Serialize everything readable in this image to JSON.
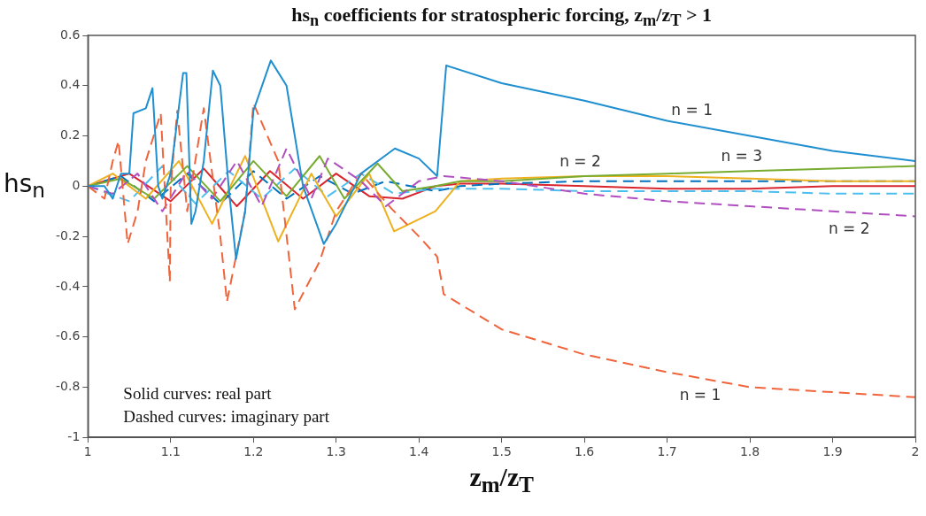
{
  "chart_data": {
    "type": "line",
    "title": "hs$_{n}$ coefficients for stratospheric forcing,  z$_{m}$/z$_{T}$ > 1",
    "xlabel": "z$_{m}$/z$_{T}$",
    "ylabel": "hs$_{n}$",
    "xlim": [
      1,
      2
    ],
    "xticks": [
      1,
      1.1,
      1.2,
      1.3,
      1.4,
      1.5,
      1.6,
      1.7,
      1.8,
      1.9,
      2
    ],
    "ylim": [
      -1,
      0.6
    ],
    "yticks": [
      -1,
      -0.8,
      -0.6,
      -0.4,
      -0.2,
      0,
      0.2,
      0.4,
      0.6
    ],
    "series": [
      {
        "name": "n = 1",
        "color": "#1f8fd0",
        "line_style": "solid",
        "x": [
          1,
          1.02,
          1.03,
          1.04,
          1.05,
          1.055,
          1.07,
          1.078,
          1.085,
          1.09,
          1.1,
          1.115,
          1.119,
          1.125,
          1.13,
          1.14,
          1.151,
          1.16,
          1.17,
          1.179,
          1.19,
          1.2,
          1.221,
          1.24,
          1.26,
          1.285,
          1.3,
          1.33,
          1.371,
          1.4,
          1.422,
          1.433,
          1.5,
          1.6,
          1.7,
          1.8,
          1.9,
          2
        ],
        "values": [
          0,
          0,
          -0.05,
          0.05,
          0.05,
          0.29,
          0.31,
          0.39,
          0,
          -0.05,
          0.05,
          0.45,
          0.45,
          -0.15,
          -0.1,
          0.1,
          0.46,
          0.4,
          0,
          -0.29,
          -0.1,
          0.3,
          0.5,
          0.4,
          0,
          -0.23,
          -0.15,
          0.05,
          0.15,
          0.11,
          0.04,
          0.48,
          0.41,
          0.34,
          0.26,
          0.2,
          0.14,
          0.1
        ]
      },
      {
        "name": "n = 1",
        "color": "#f0643c",
        "line_style": "dashed",
        "x": [
          1,
          1.02,
          1.03,
          1.037,
          1.048,
          1.06,
          1.07,
          1.088,
          1.099,
          1.1,
          1.108,
          1.12,
          1.14,
          1.16,
          1.168,
          1.19,
          1.2,
          1.23,
          1.25,
          1.28,
          1.3,
          1.33,
          1.367,
          1.4,
          1.422,
          1.43,
          1.5,
          1.6,
          1.7,
          1.8,
          1.9,
          2
        ],
        "values": [
          0,
          -0.05,
          0.1,
          0.18,
          -0.23,
          -0.1,
          0.1,
          0.29,
          -0.38,
          0,
          0.3,
          -0.1,
          0.31,
          -0.2,
          -0.46,
          -0.1,
          0.33,
          0.1,
          -0.49,
          -0.3,
          -0.1,
          0.05,
          -0.09,
          -0.2,
          -0.28,
          -0.43,
          -0.57,
          -0.67,
          -0.74,
          -0.8,
          -0.82,
          -0.84
        ]
      },
      {
        "name": "n = 2",
        "color": "#b04fc0",
        "line_style": "dashed",
        "x": [
          1,
          1.03,
          1.06,
          1.09,
          1.12,
          1.15,
          1.18,
          1.21,
          1.24,
          1.27,
          1.29,
          1.33,
          1.36,
          1.4,
          1.43,
          1.5,
          1.6,
          1.7,
          1.8,
          1.9,
          2
        ],
        "values": [
          0,
          -0.03,
          0.05,
          -0.1,
          0.06,
          -0.05,
          0.1,
          -0.08,
          0.15,
          -0.05,
          0.11,
          0.02,
          -0.08,
          0.02,
          0.04,
          0.02,
          -0.03,
          -0.06,
          -0.08,
          -0.1,
          -0.12
        ]
      },
      {
        "name": "n = 3",
        "color": "#77ac30",
        "line_style": "solid",
        "x": [
          1,
          1.04,
          1.08,
          1.12,
          1.16,
          1.2,
          1.24,
          1.28,
          1.31,
          1.35,
          1.38,
          1.42,
          1.45,
          1.5,
          1.6,
          1.7,
          1.8,
          1.9,
          2
        ],
        "values": [
          0,
          0.03,
          -0.05,
          0.08,
          -0.06,
          0.1,
          -0.04,
          0.12,
          -0.05,
          0.09,
          -0.02,
          0,
          0.02,
          0.02,
          0.04,
          0.05,
          0.06,
          0.07,
          0.08
        ]
      },
      {
        "name": "n = 2",
        "color": "#edb120",
        "line_style": "solid",
        "x": [
          1,
          1.03,
          1.07,
          1.11,
          1.15,
          1.19,
          1.23,
          1.27,
          1.3,
          1.34,
          1.37,
          1.42,
          1.45,
          1.5,
          1.6,
          1.7,
          1.8,
          1.9,
          2
        ],
        "values": [
          0,
          0.05,
          -0.05,
          0.1,
          -0.15,
          0.12,
          -0.22,
          0.05,
          -0.12,
          0.05,
          -0.18,
          -0.1,
          0.02,
          0.03,
          0.04,
          0.04,
          0.03,
          0.02,
          0.02
        ]
      },
      {
        "color": "#4dbeee",
        "line_style": "dashed",
        "x": [
          1,
          1.05,
          1.09,
          1.13,
          1.17,
          1.21,
          1.25,
          1.29,
          1.33,
          1.37,
          1.42,
          1.45,
          1.5,
          1.6,
          1.7,
          1.8,
          1.9,
          2
        ],
        "values": [
          0,
          -0.06,
          0.08,
          -0.07,
          0.06,
          -0.05,
          0.07,
          -0.04,
          0.05,
          -0.03,
          -0.01,
          -0.01,
          -0.01,
          -0.02,
          -0.02,
          -0.02,
          -0.03,
          -0.03
        ]
      },
      {
        "color": "#0072bd",
        "line_style": "dashed",
        "x": [
          1,
          1.04,
          1.08,
          1.12,
          1.16,
          1.2,
          1.24,
          1.28,
          1.32,
          1.36,
          1.42,
          1.45,
          1.5,
          1.6,
          1.7,
          1.8,
          1.9,
          2
        ],
        "values": [
          0,
          0.04,
          -0.06,
          0.05,
          -0.07,
          0.06,
          -0.05,
          0.04,
          -0.03,
          0.02,
          -0.02,
          0,
          0.01,
          0.02,
          0.02,
          0.02,
          0.02,
          0.02
        ]
      },
      {
        "color": "#d9262e",
        "line_style": "solid",
        "x": [
          1,
          1.05,
          1.1,
          1.14,
          1.18,
          1.22,
          1.26,
          1.3,
          1.34,
          1.38,
          1.42,
          1.45,
          1.5,
          1.6,
          1.7,
          1.8,
          1.9,
          2
        ],
        "values": [
          0,
          0.05,
          -0.06,
          0.07,
          -0.08,
          0.06,
          -0.05,
          0.05,
          -0.04,
          -0.05,
          0,
          0.01,
          0.01,
          0,
          -0.01,
          -0.01,
          0,
          0
        ]
      }
    ],
    "annotations": [
      "Solid curves:  real part",
      "Dashed curves: imaginary part"
    ]
  }
}
